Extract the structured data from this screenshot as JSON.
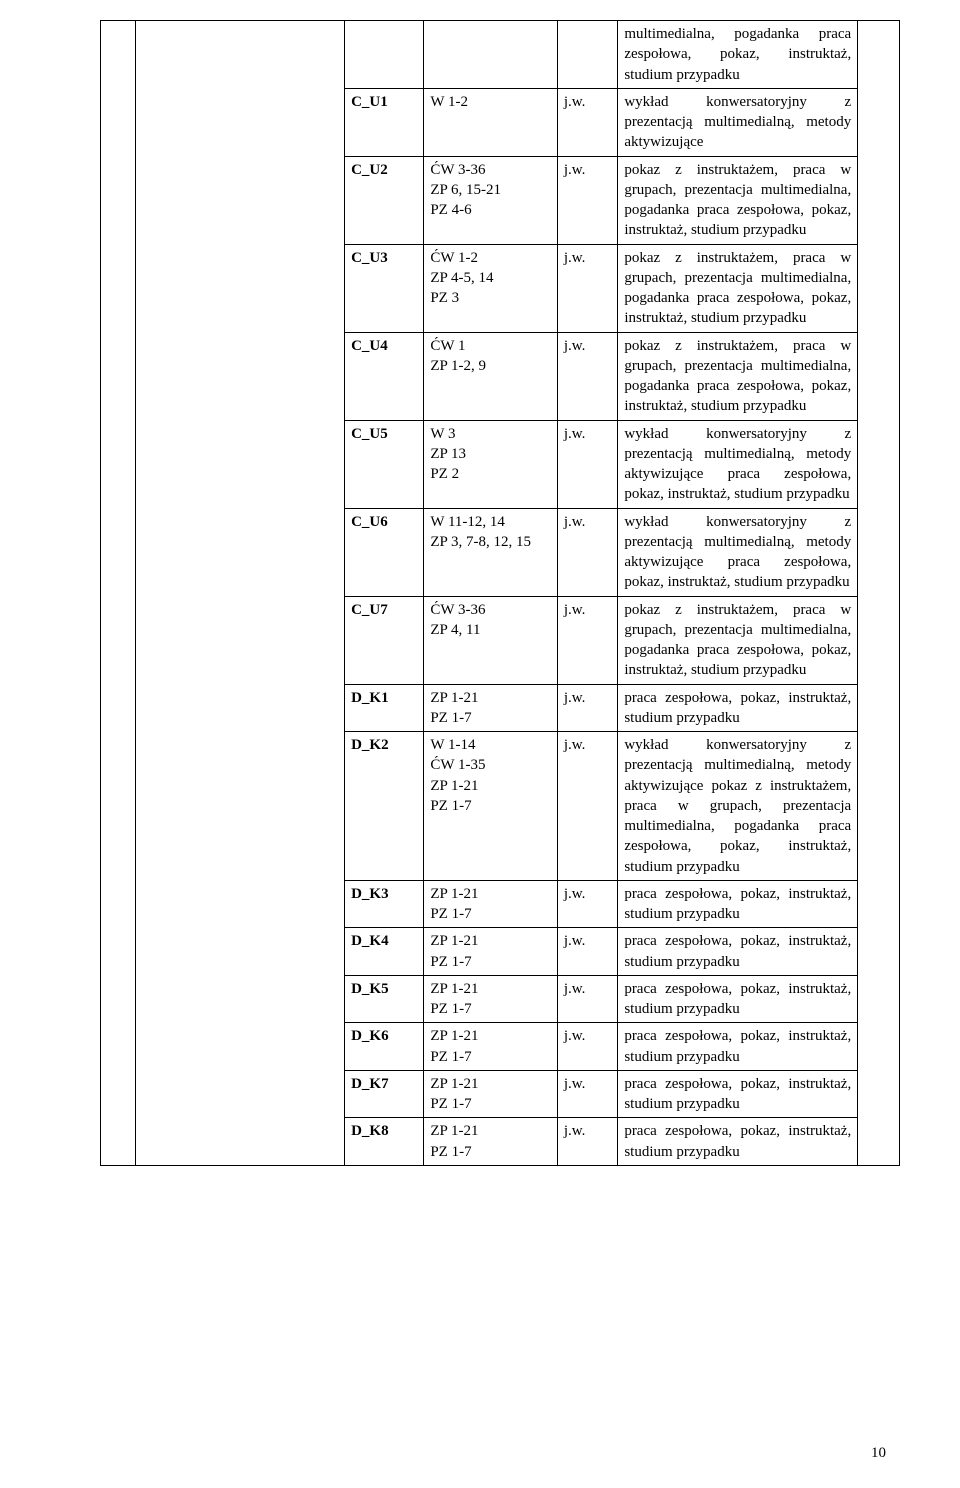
{
  "page_number": "10",
  "text": {
    "mpg": "multimedialna, pogadanka",
    "pz": "praca zespołowa, pokaz, instruktaż, studium przypadku",
    "wyk": "wykład konwersatoryjny z prezentacją multimedialną, metody aktywizujące",
    "pok": "pokaz z instruktażem, praca w grupach, prezentacja multimedialna, pogadanka",
    "pzp": "praca zespołowa, pokaz, instruktaż, studium przypadku",
    "prz": "praca zespołowa, pokaz, instruktaż, studium przypadku"
  },
  "rows": [
    {
      "code": "",
      "col2": "",
      "col3": "",
      "desc_keys": [
        "mpg",
        "pz"
      ]
    },
    {
      "code": "C_U1",
      "col2": "W 1-2",
      "col3": "j.w.",
      "desc_keys": [
        "wyk"
      ]
    },
    {
      "code": "C_U2",
      "col2": "ĆW 3-36\nZP 6, 15-21\nPZ 4-6",
      "col3": "j.w.",
      "desc_keys": [
        "pok",
        "pz"
      ]
    },
    {
      "code": "C_U3",
      "col2": "ĆW 1-2\nZP 4-5, 14\nPZ 3",
      "col3": "j.w.",
      "desc_keys": [
        "pok",
        "pz"
      ]
    },
    {
      "code": "C_U4",
      "col2": "ĆW 1\nZP 1-2, 9",
      "col3": "j.w.",
      "desc_keys": [
        "pok",
        "pz"
      ]
    },
    {
      "code": "C_U5",
      "col2": "W 3\nZP 13\nPZ 2",
      "col3": "j.w.",
      "desc_keys": [
        "wyk",
        "pz"
      ]
    },
    {
      "code": "C_U6",
      "col2": "W 11-12, 14\nZP 3, 7-8, 12, 15",
      "col3": "j.w.",
      "desc_keys": [
        "wyk",
        "pz"
      ]
    },
    {
      "code": "C_U7",
      "col2": "ĆW 3-36\nZP 4, 11",
      "col3": "j.w.",
      "desc_keys": [
        "pok",
        "pz"
      ]
    },
    {
      "code": "D_K1",
      "col2": "ZP 1-21\nPZ 1-7",
      "col3": "j.w.",
      "desc_keys": [
        "pz"
      ]
    },
    {
      "code": "D_K2",
      "col2": "W 1-14\nĆW 1-35\nZP 1-21\nPZ 1-7",
      "col3": "j.w.",
      "desc_keys": [
        "wyk",
        "pok",
        "pz"
      ]
    },
    {
      "code": "D_K3",
      "col2": "ZP 1-21\nPZ 1-7",
      "col3": "j.w.",
      "desc_keys": [
        "pz"
      ]
    },
    {
      "code": "D_K4",
      "col2": "ZP 1-21\nPZ 1-7",
      "col3": "j.w.",
      "desc_keys": [
        "pz"
      ]
    },
    {
      "code": "D_K5",
      "col2": "ZP 1-21\nPZ 1-7",
      "col3": "j.w.",
      "desc_keys": [
        "pz"
      ]
    },
    {
      "code": "D_K6",
      "col2": "ZP 1-21\nPZ 1-7",
      "col3": "j.w.",
      "desc_keys": [
        "pz"
      ]
    },
    {
      "code": "D_K7",
      "col2": "ZP 1-21\nPZ 1-7",
      "col3": "j.w.",
      "desc_keys": [
        "pz"
      ]
    },
    {
      "code": "D_K8",
      "col2": "ZP 1-21\nPZ 1-7",
      "col3": "j.w.",
      "desc_keys": [
        "prz"
      ]
    }
  ]
}
